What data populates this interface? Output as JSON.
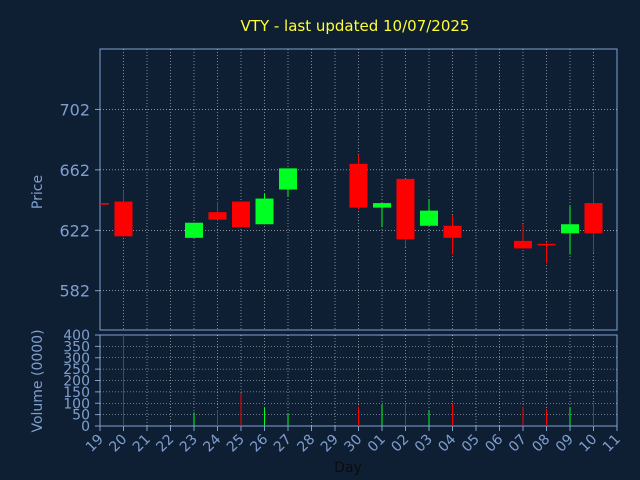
{
  "chart_data": {
    "type": "candlestick",
    "title": "VTY - last updated 10/07/2025",
    "xlabel": "Day",
    "x_ticks": [
      "19",
      "20",
      "21",
      "22",
      "23",
      "24",
      "25",
      "26",
      "27",
      "28",
      "29",
      "30",
      "01",
      "02",
      "03",
      "04",
      "05",
      "06",
      "07",
      "08",
      "09",
      "10",
      "11"
    ],
    "price_panel": {
      "ylabel": "Price",
      "y_ticks": [
        582,
        622,
        662,
        702
      ],
      "ylim": [
        556,
        742
      ],
      "candles": [
        {
          "x": "19",
          "open": 640,
          "high": 640,
          "low": 640,
          "close": 640,
          "color": "red"
        },
        {
          "x": "20",
          "open": 641,
          "high": 649,
          "low": 618,
          "close": 618,
          "color": "red"
        },
        {
          "x": "23",
          "open": 617,
          "high": 627,
          "low": 617,
          "close": 627,
          "color": "green"
        },
        {
          "x": "24",
          "open": 634,
          "high": 641,
          "low": 628,
          "close": 629,
          "color": "red"
        },
        {
          "x": "25",
          "open": 641,
          "high": 641,
          "low": 624,
          "close": 624,
          "color": "red"
        },
        {
          "x": "26",
          "open": 626,
          "high": 646,
          "low": 626,
          "close": 643,
          "color": "green"
        },
        {
          "x": "27",
          "open": 649,
          "high": 663,
          "low": 644,
          "close": 663,
          "color": "green"
        },
        {
          "x": "30",
          "open": 666,
          "high": 672,
          "low": 636,
          "close": 637,
          "color": "red"
        },
        {
          "x": "01",
          "open": 637,
          "high": 640,
          "low": 624,
          "close": 640,
          "color": "green"
        },
        {
          "x": "02",
          "open": 656,
          "high": 656,
          "low": 611,
          "close": 616,
          "color": "red"
        },
        {
          "x": "03",
          "open": 625,
          "high": 642,
          "low": 625,
          "close": 635,
          "color": "green"
        },
        {
          "x": "04",
          "open": 625,
          "high": 632,
          "low": 606,
          "close": 617,
          "color": "red"
        },
        {
          "x": "07",
          "open": 615,
          "high": 626,
          "low": 610,
          "close": 610,
          "color": "red"
        },
        {
          "x": "08",
          "open": 613,
          "high": 614,
          "low": 600,
          "close": 613,
          "color": "red"
        },
        {
          "x": "09",
          "open": 620,
          "high": 638,
          "low": 606,
          "close": 626,
          "color": "green"
        },
        {
          "x": "10",
          "open": 640,
          "high": 660,
          "low": 607,
          "close": 620,
          "color": "red"
        }
      ]
    },
    "volume_panel": {
      "ylabel": "Volume (0000)",
      "y_ticks": [
        0,
        50,
        100,
        150,
        200,
        250,
        300,
        350,
        400
      ],
      "ylim": [
        0,
        400
      ],
      "bars": [
        {
          "x": "20",
          "value": 400,
          "color": "red"
        },
        {
          "x": "23",
          "value": 60,
          "color": "green"
        },
        {
          "x": "24",
          "value": 70,
          "color": "red"
        },
        {
          "x": "25",
          "value": 145,
          "color": "red"
        },
        {
          "x": "26",
          "value": 80,
          "color": "green"
        },
        {
          "x": "27",
          "value": 55,
          "color": "green"
        },
        {
          "x": "30",
          "value": 85,
          "color": "red"
        },
        {
          "x": "01",
          "value": 95,
          "color": "green"
        },
        {
          "x": "02",
          "value": 100,
          "color": "red"
        },
        {
          "x": "03",
          "value": 70,
          "color": "green"
        },
        {
          "x": "04",
          "value": 100,
          "color": "red"
        },
        {
          "x": "07",
          "value": 85,
          "color": "red"
        },
        {
          "x": "08",
          "value": 75,
          "color": "red"
        },
        {
          "x": "09",
          "value": 80,
          "color": "green"
        },
        {
          "x": "10",
          "value": 100,
          "color": "red"
        }
      ]
    },
    "colors": {
      "background": "#0f1f33",
      "axes": "#7f9fcf",
      "title": "#ffff33",
      "grid": "#ffffff",
      "up": "#00ff22",
      "down": "#ff0000"
    },
    "grid": true
  }
}
